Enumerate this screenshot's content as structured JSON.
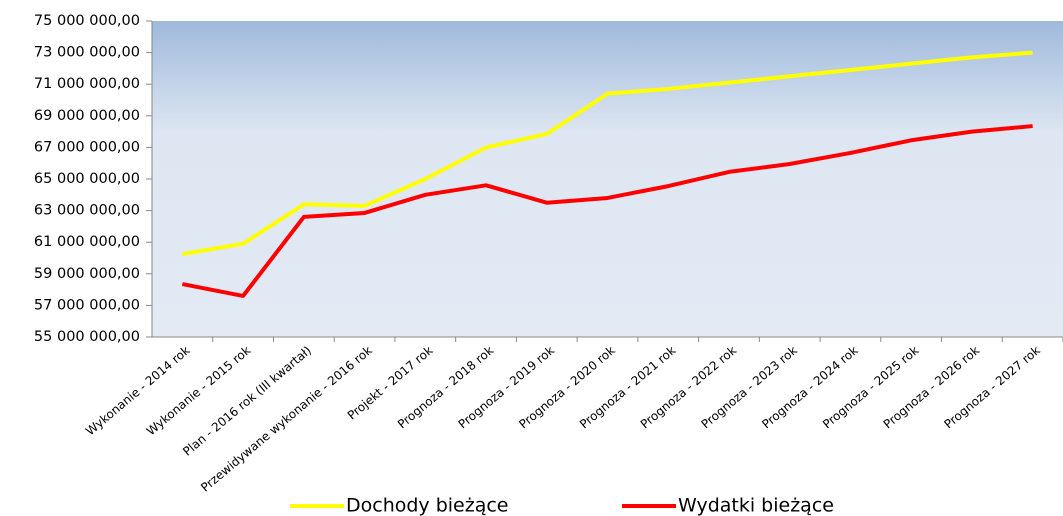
{
  "chart_data": {
    "type": "line",
    "categories": [
      "Wykonanie - 2014 rok",
      "Wykonanie - 2015 rok",
      "Plan - 2016 rok (III kwartał)",
      "Przewidywane wykonanie - 2016 rok",
      "Projekt - 2017 rok",
      "Prognoza - 2018 rok",
      "Prognoza - 2019 rok",
      "Prognoza - 2020 rok",
      "Prognoza - 2021 rok",
      "Prognoza - 2022 rok",
      "Prognoza - 2023 rok",
      "Prognoza - 2024 rok",
      "Prognoza - 2025 rok",
      "Prognoza - 2026 rok",
      "Prognoza - 2027 rok"
    ],
    "series": [
      {
        "name": "Dochody bieżące",
        "color": "#ffff00",
        "values": [
          60250000,
          60900000,
          63400000,
          63300000,
          65000000,
          67000000,
          67850000,
          70400000,
          70700000,
          71100000,
          71500000,
          71900000,
          72300000,
          72700000,
          73000000
        ]
      },
      {
        "name": "Wydatki bieżące",
        "color": "#ff0000",
        "values": [
          58350000,
          57600000,
          62600000,
          62850000,
          64000000,
          64600000,
          63500000,
          63800000,
          64550000,
          65450000,
          65950000,
          66650000,
          67450000,
          68000000,
          68350000
        ]
      }
    ],
    "ylim": [
      55000000,
      75000000
    ],
    "yticks": [
      {
        "value": 55000000,
        "label": "55 000 000,00"
      },
      {
        "value": 57000000,
        "label": "57 000 000,00"
      },
      {
        "value": 59000000,
        "label": "59 000 000,00"
      },
      {
        "value": 61000000,
        "label": "61 000 000,00"
      },
      {
        "value": 63000000,
        "label": "63 000 000,00"
      },
      {
        "value": 65000000,
        "label": "65 000 000,00"
      },
      {
        "value": 67000000,
        "label": "67 000 000,00"
      },
      {
        "value": 69000000,
        "label": "69 000 000,00"
      },
      {
        "value": 71000000,
        "label": "71 000 000,00"
      },
      {
        "value": 73000000,
        "label": "73 000 000,00"
      },
      {
        "value": 75000000,
        "label": "75 000 000,00"
      }
    ],
    "grid": false,
    "legend": "bottom"
  }
}
